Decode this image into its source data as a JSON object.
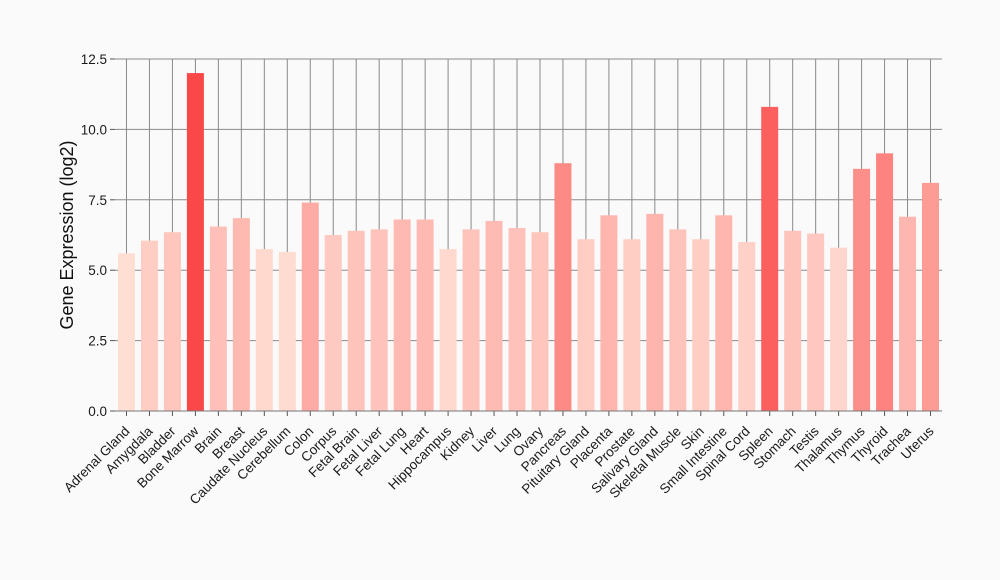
{
  "chart_data": {
    "type": "bar",
    "ylabel": "Gene Expression (log2)",
    "xlabel": "",
    "ylim": [
      0,
      12.5
    ],
    "yticks": [
      "0.0",
      "2.5",
      "5.0",
      "7.5",
      "10.0",
      "12.5"
    ],
    "grid": true,
    "categories": [
      "Adrenal Gland",
      "Amygdala",
      "Bladder",
      "Bone Marrow",
      "Brain",
      "Breast",
      "Caudate Nucleus",
      "Cerebellum",
      "Colon",
      "Corpus",
      "Fetal Brain",
      "Fetal Liver",
      "Fetal Lung",
      "Heart",
      "Hippocampus",
      "Kidney",
      "Liver",
      "Lung",
      "Ovary",
      "Pancreas",
      "Pituitary Gland",
      "Placenta",
      "Prostate",
      "Salivary Gland",
      "Skeletal Muscle",
      "Skin",
      "Small Intestine",
      "Spinal Cord",
      "Spleen",
      "Stomach",
      "Testis",
      "Thalamus",
      "Thymus",
      "Thyroid",
      "Trachea",
      "Uterus"
    ],
    "values": [
      5.6,
      6.05,
      6.35,
      12.0,
      6.55,
      6.85,
      5.75,
      5.65,
      7.4,
      6.25,
      6.4,
      6.45,
      6.8,
      6.8,
      5.75,
      6.45,
      6.75,
      6.5,
      6.35,
      8.8,
      6.1,
      6.95,
      6.1,
      7.0,
      6.45,
      6.1,
      6.95,
      6.0,
      10.8,
      6.4,
      6.3,
      5.8,
      8.6,
      9.15,
      6.9,
      8.1
    ]
  }
}
